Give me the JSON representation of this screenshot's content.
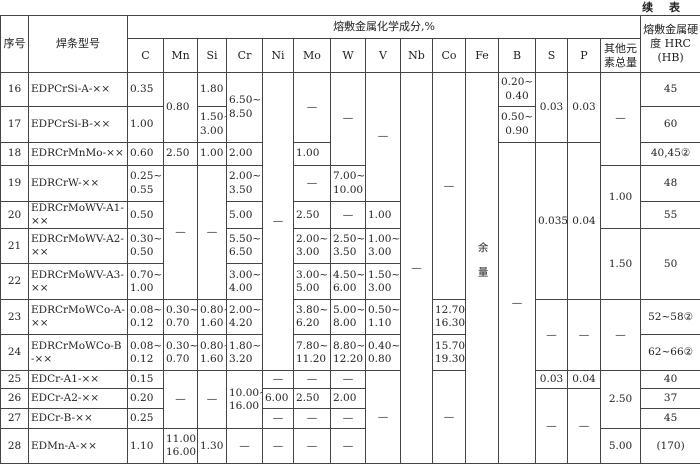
{
  "header": {
    "note": "续 表"
  },
  "table": {
    "group_header": "熔敷金属化学成分,%",
    "columns": [
      "序号",
      "焊条型号",
      "C",
      "Mn",
      "Si",
      "Cr",
      "Ni",
      "Mo",
      "W",
      "V",
      "Nb",
      "Co",
      "Fe",
      "B",
      "S",
      "P",
      "其他元素总量",
      "熔敷金属硬度 HRC (HB)"
    ],
    "rows": [
      [
        "16",
        "EDPCrSi-A-××",
        "0.35",
        "0.80",
        "1.80",
        "6.50~8.50",
        "—",
        "—",
        "—",
        "—",
        "—",
        "—",
        "余量",
        "0.20~0.40",
        "0.03",
        "0.03",
        "—",
        "45"
      ],
      [
        "17",
        "EDPCrSi-B-××",
        "1.00",
        "1.50~3.00",
        "0.50~0.90",
        "60"
      ],
      [
        "18",
        "EDRCrMnMo-××",
        "0.60",
        "2.50",
        "1.00",
        "2.00",
        "1.00",
        "—",
        "0.035",
        "0.04",
        "40,45②"
      ],
      [
        "19",
        "EDRCrW-××",
        "0.25~0.55",
        "—",
        "—",
        "2.00~3.50",
        "—",
        "7.00~10.00",
        "1.00",
        "48"
      ],
      [
        "20",
        "EDRCrMoWV-A1-××",
        "0.50",
        "5.00",
        "2.50",
        "—",
        "1.00",
        "55"
      ],
      [
        "21",
        "EDRCrMoWV-A2-××",
        "0.30~0.50",
        "5.50~6.50",
        "2.00~3.00",
        "2.50~3.50",
        "1.00~3.00",
        "1.50",
        "50"
      ],
      [
        "22",
        "EDRCrMoWV-A3-××",
        "0.70~1.00",
        "3.00~4.00",
        "3.00~5.00",
        "4.50~6.00",
        "1.50~3.00"
      ],
      [
        "23",
        "EDRCrMoWCo-A-××",
        "0.08~0.12",
        "0.30~0.70",
        "0.80~1.60",
        "2.00~4.20",
        "3.80~6.20",
        "5.00~8.00",
        "0.50~1.10",
        "12.70~16.30",
        "—",
        "—",
        "—",
        "52~58②"
      ],
      [
        "24",
        "EDRCrMoWCo-B-××",
        "0.08~0.12",
        "0.30~0.70",
        "0.80~1.60",
        "1.80~3.20",
        "7.80~11.20",
        "8.80~12.20",
        "0.40~0.80",
        "15.70~19.30",
        "62~66②"
      ],
      [
        "25",
        "EDCr-A1-××",
        "0.15",
        "—",
        "—",
        "10.00~16.00",
        "—",
        "—",
        "—",
        "—",
        "—",
        "0.03",
        "0.04",
        "2.50",
        "40"
      ],
      [
        "26",
        "EDCr-A2-××",
        "0.20",
        "6.00",
        "2.50",
        "2.00",
        "—",
        "—",
        "37"
      ],
      [
        "27",
        "EDCr-B-××",
        "0.25",
        "—",
        "—",
        "—",
        "45"
      ],
      [
        "28",
        "EDMn-A-××",
        "1.10",
        "11.00~16.00",
        "1.30",
        "—",
        "—",
        "—",
        "—",
        "5.00",
        "(170)"
      ]
    ]
  }
}
